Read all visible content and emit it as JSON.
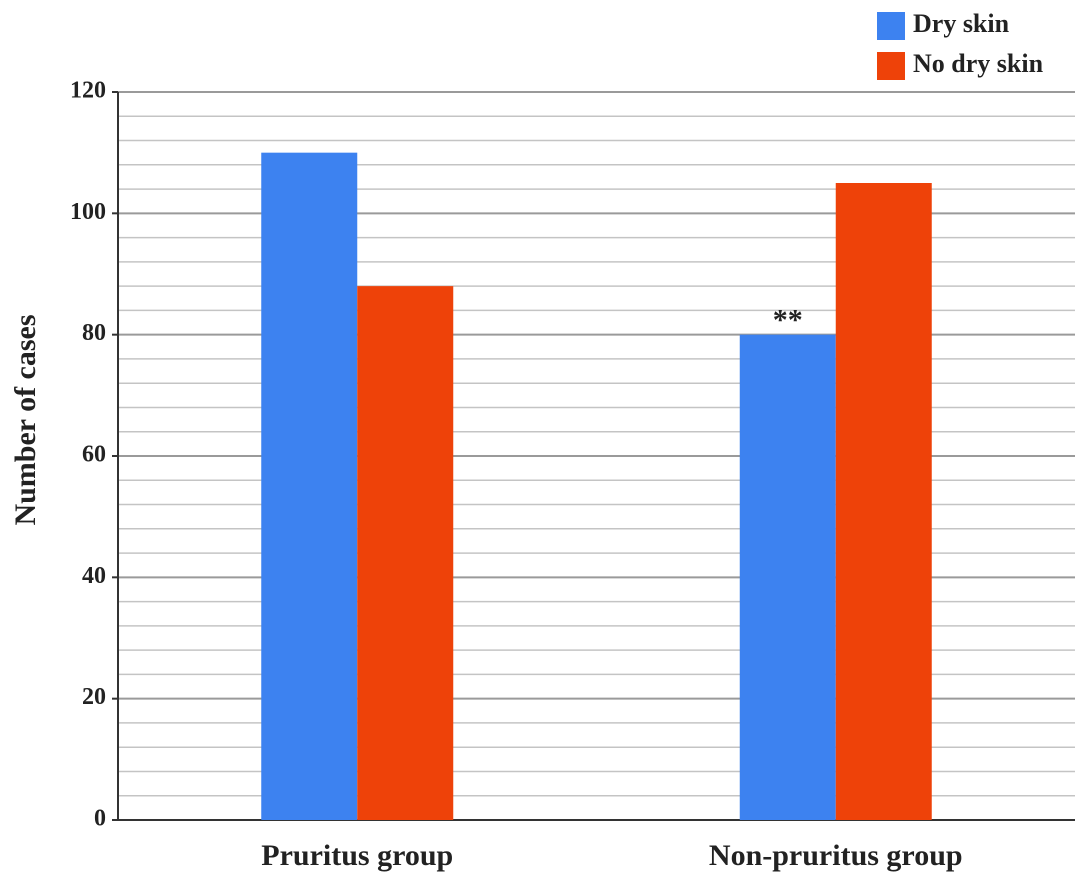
{
  "chart_data": {
    "type": "bar",
    "y_label": "Number of cases",
    "categories": [
      "Pruritus group",
      "Non-pruritus group"
    ],
    "series": [
      {
        "name": "Dry skin",
        "color": "#3d82f0",
        "values": [
          110,
          80
        ]
      },
      {
        "name": "No dry skin",
        "color": "#ee4209",
        "values": [
          88,
          105
        ]
      }
    ],
    "ylim": [
      0,
      120
    ],
    "yticks": [
      0,
      20,
      40,
      60,
      80,
      100,
      120
    ],
    "minor_yticks": [
      4,
      8,
      12,
      16,
      24,
      28,
      32,
      36,
      44,
      48,
      52,
      56,
      64,
      68,
      72,
      76,
      84,
      88,
      92,
      96,
      104,
      108,
      112,
      116
    ],
    "grid": true,
    "legend": "top-right",
    "annotations": [
      {
        "text": "**",
        "category": "Non-pruritus group",
        "series": "Dry skin"
      }
    ]
  }
}
